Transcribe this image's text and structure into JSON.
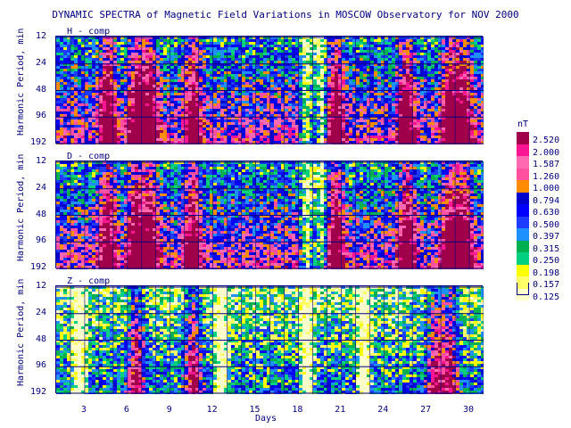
{
  "title": "DYNAMIC SPECTRA of Magnetic Field Variations in MOSCOW Observatory for NOV 2000",
  "chart_data": {
    "type": "heatmap",
    "x_label": "Days",
    "x_ticks": [
      "3",
      "6",
      "9",
      "12",
      "15",
      "18",
      "21",
      "24",
      "27",
      "30"
    ],
    "x_range": [
      1,
      31
    ],
    "y_label": "Harmonic Period, min",
    "y_ticks": [
      "12",
      "24",
      "48",
      "96",
      "192"
    ],
    "y_scale": "log",
    "y_range": [
      12,
      192
    ],
    "panels": [
      {
        "label": "H - comp",
        "disturbed_days": [
          4.5,
          6.5,
          7.5,
          10.5,
          20.5,
          25.5,
          28.5,
          29.5
        ],
        "quiet_days": [
          18.5,
          19.5
        ]
      },
      {
        "label": "D - comp",
        "disturbed_days": [
          4.5,
          6.5,
          7.5,
          10.5,
          20.5,
          25.5,
          28.5,
          29.5
        ],
        "quiet_days": [
          18.5,
          19.5
        ]
      },
      {
        "label": "Z - comp",
        "disturbed_days": [
          6.5,
          10.5,
          27.5,
          28.5
        ],
        "quiet_days": [
          2.5,
          12.5,
          18.5,
          22.5
        ]
      }
    ],
    "colorbar": {
      "unit": "nT",
      "levels": [
        "2.520",
        "2.000",
        "1.587",
        "1.260",
        "1.000",
        "0.794",
        "0.630",
        "0.500",
        "0.397",
        "0.315",
        "0.250",
        "0.198",
        "0.157",
        "0.125"
      ],
      "colors": [
        "#a0004a",
        "#ff1493",
        "#ff69b4",
        "#ff4fa0",
        "#ff8c00",
        "#0000cd",
        "#0000ff",
        "#1e3cff",
        "#1e90ff",
        "#00b050",
        "#00d080",
        "#ffff00",
        "#ffff66",
        "#ffffcc"
      ]
    }
  }
}
